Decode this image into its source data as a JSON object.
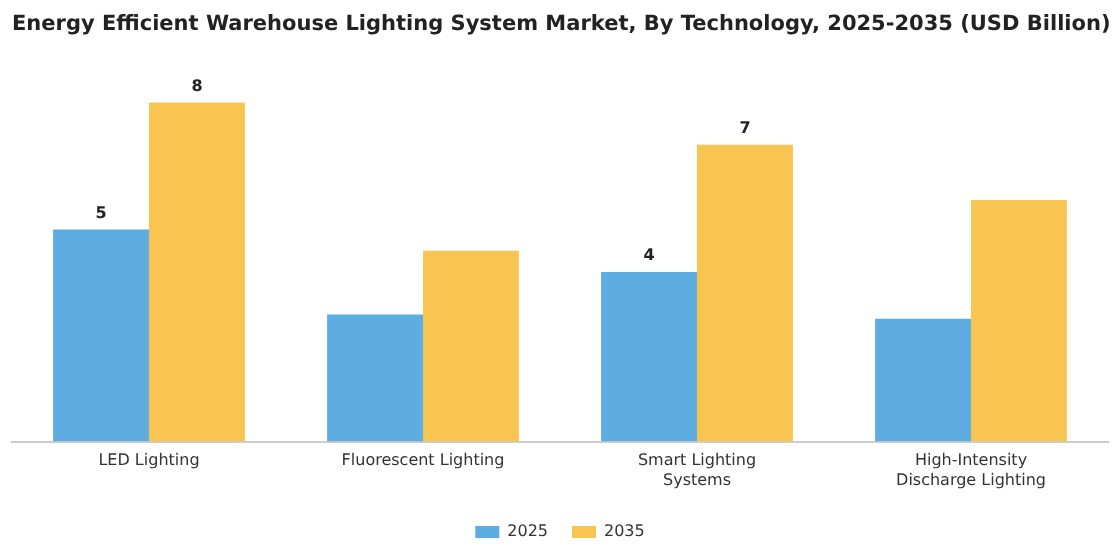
{
  "chart_data": {
    "type": "bar",
    "title": "Energy Efficient Warehouse Lighting System Market, By Technology, 2025-2035 (USD Billion)",
    "categories": [
      "LED Lighting",
      "Fluorescent Lighting",
      "Smart Lighting Systems",
      "High-Intensity Discharge Lighting"
    ],
    "series": [
      {
        "name": "2025",
        "color": "#5dade2",
        "values": [
          5,
          3.0,
          4,
          2.9
        ],
        "value_labels": [
          "5",
          null,
          "4",
          null
        ]
      },
      {
        "name": "2035",
        "color": "#f8c550",
        "values": [
          8,
          4.5,
          7,
          5.7
        ],
        "value_labels": [
          "8",
          null,
          "7",
          null
        ]
      }
    ],
    "grid": false,
    "legend": "bottom"
  }
}
